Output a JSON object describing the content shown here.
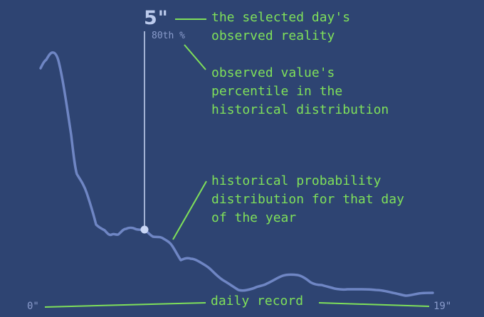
{
  "observed": {
    "value_label": "5\"",
    "percentile_label": "80th %",
    "value_inches": 5,
    "percentile": 80
  },
  "axis": {
    "min_label": "0\"",
    "max_label": "19\"",
    "min_inches": 0,
    "max_inches": 19
  },
  "annotations": {
    "observed_reality": "the selected day's\nobserved reality",
    "percentile": "observed value's\npercentile in the\nhistorical distribution",
    "distribution": "historical probability\ndistribution for that day\nof the year",
    "daily_record": "daily record"
  },
  "colors": {
    "background": "#2e4472",
    "curve": "#6f86c4",
    "marker": "#c9d6f5",
    "annotation": "#7fe05a",
    "muted_text": "#8a9ccc"
  }
}
